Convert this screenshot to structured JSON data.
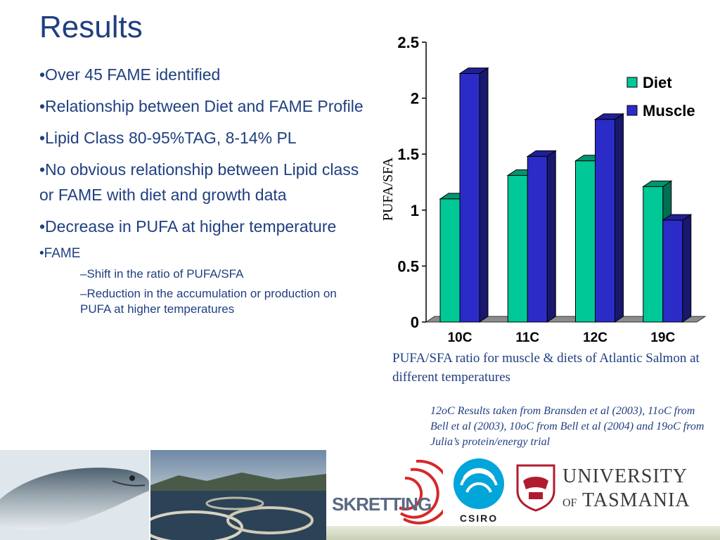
{
  "slide": {
    "title": "Results",
    "bullets": [
      "•Over 45 FAME identified",
      "•Relationship between Diet and FAME Profile",
      "•Lipid Class 80-95%TAG, 8-14% PL",
      "•No obvious relationship between Lipid class or FAME with diet and growth data",
      "•Decrease in PUFA at higher temperature",
      "•FAME"
    ],
    "sub_bullets": [
      "–Shift in the ratio of PUFA/SFA",
      "–Reduction in the accumulation or production on PUFA at higher temperatures"
    ],
    "caption": "PUFA/SFA ratio for muscle & diets of Atlantic Salmon at different temperatures",
    "note": "12oC Results taken from Bransden et al (2003), 11oC from Bell et al (2003), 10oC from Bell et al (2004) and 19oC from Julia’s protein/energy trial"
  },
  "logos": {
    "skretting": "SKRETTING",
    "csiro": "CSIRO",
    "utas_line1": "UNIVERSITY",
    "utas_of": "OF",
    "utas_line2": "TASMANIA"
  },
  "chart_data": {
    "type": "bar",
    "categories": [
      "10C",
      "11C",
      "12C",
      "19C"
    ],
    "series": [
      {
        "name": "Diet",
        "values": [
          1.1,
          1.31,
          1.44,
          1.21
        ],
        "color": "#00c896"
      },
      {
        "name": "Muscle",
        "values": [
          2.22,
          1.48,
          1.81,
          0.91
        ],
        "color": "#2b2bc8"
      }
    ],
    "ylabel": "PUFA/SFA",
    "xlabel": "",
    "ylim": [
      0,
      2.5
    ],
    "yticks": [
      "0",
      "0.5",
      "1",
      "1.5",
      "2",
      "2.5"
    ],
    "grid": false,
    "legend": "top-right",
    "style": "3d-bar"
  },
  "colors": {
    "text": "#1f3f80"
  }
}
